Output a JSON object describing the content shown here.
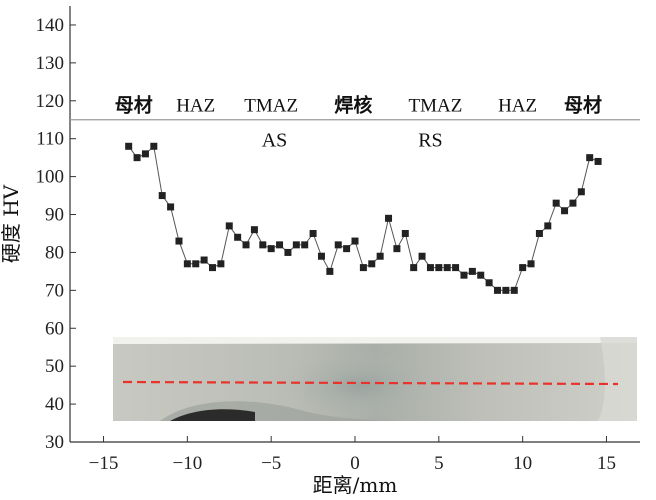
{
  "chart_data": {
    "type": "line",
    "xlabel": "距离/mm",
    "ylabel": "硬度 HV",
    "xlim": [
      -17,
      17
    ],
    "ylim": [
      30,
      145
    ],
    "x_ticks": [
      -15,
      -10,
      -5,
      0,
      5,
      10,
      15
    ],
    "y_ticks": [
      30,
      40,
      50,
      60,
      70,
      80,
      90,
      100,
      110,
      120,
      130,
      140
    ],
    "grid": false,
    "reference_line": {
      "y": 115,
      "color": "#9a9a9a"
    },
    "region_labels": [
      {
        "text": "母材",
        "x": -13.2,
        "cjk": true
      },
      {
        "text": "HAZ",
        "x": -9.5,
        "cjk": false
      },
      {
        "text": "TMAZ",
        "x": -5.0,
        "cjk": false
      },
      {
        "text": "焊核",
        "x": -0.1,
        "cjk": true
      },
      {
        "text": "TMAZ",
        "x": 4.8,
        "cjk": false
      },
      {
        "text": "HAZ",
        "x": 9.7,
        "cjk": false
      },
      {
        "text": "母材",
        "x": 13.6,
        "cjk": true
      }
    ],
    "side_labels": [
      {
        "text": "AS",
        "x": -4.8,
        "y": 108
      },
      {
        "text": "RS",
        "x": 4.5,
        "y": 108
      }
    ],
    "series": [
      {
        "marker": "square",
        "color": "#222222",
        "points": [
          [
            -13.5,
            108
          ],
          [
            -13.0,
            105
          ],
          [
            -12.5,
            106
          ],
          [
            -12.0,
            108
          ],
          [
            -11.5,
            95
          ],
          [
            -11.0,
            92
          ],
          [
            -10.5,
            83
          ],
          [
            -10.0,
            77
          ],
          [
            -9.5,
            77
          ],
          [
            -9.0,
            78
          ],
          [
            -8.5,
            76
          ],
          [
            -8.0,
            77
          ],
          [
            -7.5,
            87
          ],
          [
            -7.0,
            84
          ],
          [
            -6.5,
            82
          ],
          [
            -6.0,
            86
          ],
          [
            -5.5,
            82
          ],
          [
            -5.0,
            81
          ],
          [
            -4.5,
            82
          ],
          [
            -4.0,
            80
          ],
          [
            -3.5,
            82
          ],
          [
            -3.0,
            82
          ],
          [
            -2.5,
            85
          ],
          [
            -2.0,
            79
          ],
          [
            -1.5,
            75
          ],
          [
            -1.0,
            82
          ],
          [
            -0.5,
            81
          ],
          [
            0.0,
            83
          ],
          [
            0.5,
            76
          ],
          [
            1.0,
            77
          ],
          [
            1.5,
            79
          ],
          [
            2.0,
            89
          ],
          [
            2.5,
            81
          ],
          [
            3.0,
            85
          ],
          [
            3.5,
            76
          ],
          [
            4.0,
            79
          ],
          [
            4.5,
            76
          ],
          [
            5.0,
            76
          ],
          [
            5.5,
            76
          ],
          [
            6.0,
            76
          ],
          [
            6.5,
            74
          ],
          [
            7.0,
            75
          ],
          [
            7.5,
            74
          ],
          [
            8.0,
            72
          ],
          [
            8.5,
            70
          ],
          [
            9.0,
            70
          ],
          [
            9.5,
            70
          ],
          [
            10.0,
            76
          ],
          [
            10.5,
            77
          ],
          [
            11.0,
            85
          ],
          [
            11.5,
            87
          ],
          [
            12.0,
            93
          ],
          [
            12.5,
            91
          ],
          [
            13.0,
            93
          ],
          [
            13.5,
            96
          ],
          [
            14.0,
            105
          ],
          [
            14.5,
            104
          ]
        ]
      }
    ]
  },
  "inset": {
    "dashed_line_color": "#e8322a"
  }
}
